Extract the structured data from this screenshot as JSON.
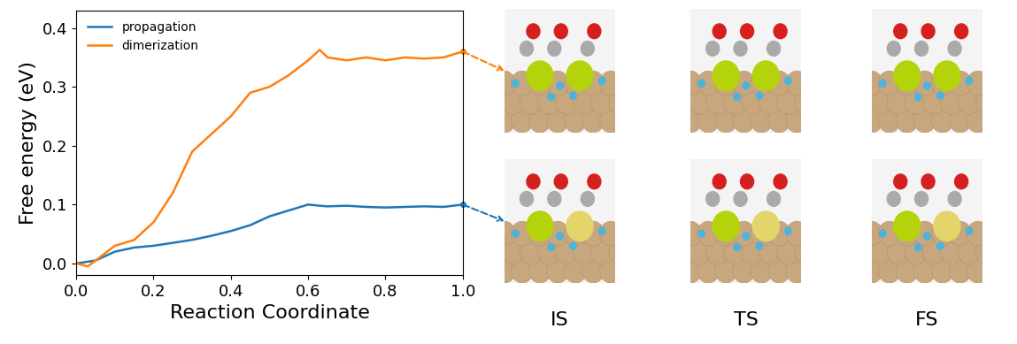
{
  "chart_data": {
    "type": "line",
    "xlabel": "Reaction Coordinate",
    "ylabel": "Free energy (eV)",
    "x": [
      0.0,
      0.03,
      0.05,
      0.1,
      0.15,
      0.2,
      0.25,
      0.3,
      0.35,
      0.4,
      0.45,
      0.5,
      0.55,
      0.6,
      0.63,
      0.65,
      0.7,
      0.75,
      0.8,
      0.85,
      0.9,
      0.95,
      1.0
    ],
    "series": [
      {
        "name": "propagation",
        "color": "#1f77b4",
        "values": [
          0.0,
          0.003,
          0.005,
          0.02,
          0.027,
          0.03,
          0.035,
          0.04,
          0.047,
          0.055,
          0.065,
          0.08,
          0.09,
          0.1,
          0.098,
          0.097,
          0.098,
          0.096,
          0.095,
          0.096,
          0.097,
          0.096,
          0.1
        ]
      },
      {
        "name": "dimerization",
        "color": "#ff7f0e",
        "values": [
          0.0,
          -0.005,
          0.005,
          0.03,
          0.04,
          0.07,
          0.12,
          0.19,
          0.22,
          0.25,
          0.29,
          0.3,
          0.32,
          0.345,
          0.363,
          0.35,
          0.345,
          0.35,
          0.345,
          0.35,
          0.348,
          0.35,
          0.36
        ]
      }
    ],
    "xlim": [
      0.0,
      1.0
    ],
    "ylim": [
      -0.02,
      0.43
    ],
    "xticks": [
      0.0,
      0.2,
      0.4,
      0.6,
      0.8,
      1.0
    ],
    "yticks": [
      0.0,
      0.1,
      0.2,
      0.3,
      0.4
    ],
    "legend": "upper left",
    "grid": false
  },
  "structure_panels": {
    "labels": [
      "IS",
      "TS",
      "FS"
    ],
    "rows": [
      "dimerization",
      "propagation"
    ]
  }
}
